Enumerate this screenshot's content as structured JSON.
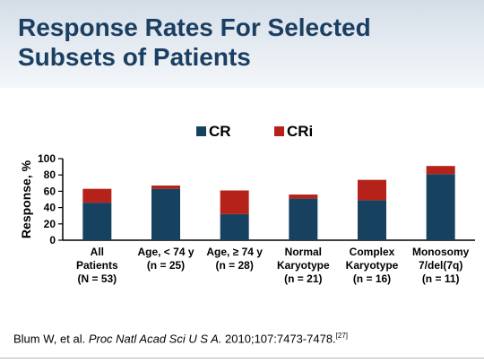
{
  "slide": {
    "title": "Response Rates For Selected Subsets of Patients"
  },
  "citation": {
    "authors": "Blum W, et al.",
    "journal": "Proc Natl Acad Sci U S A.",
    "details": "2010;107:7473-7478.",
    "ref": "[27]"
  },
  "chart_data": {
    "type": "bar",
    "stacked": true,
    "categories": [
      [
        "All",
        "Patients",
        "(N = 53)"
      ],
      [
        "Age, < 74 y",
        "(n = 25)"
      ],
      [
        "Age, ≥ 74 y",
        "(n = 28)"
      ],
      [
        "Normal",
        "Karyotype",
        "(n = 21)"
      ],
      [
        "Complex",
        "Karyotype",
        "(n = 16)"
      ],
      [
        "Monosomy",
        "7/del(7q)",
        "(n = 11)"
      ]
    ],
    "series": [
      {
        "name": "CR",
        "color": "#17425f",
        "values": [
          46,
          63,
          32,
          51,
          49,
          81
        ]
      },
      {
        "name": "CRi",
        "color": "#b5221a",
        "values": [
          17,
          4,
          29,
          5,
          25,
          10
        ]
      }
    ],
    "ylabel": "Response, %",
    "ylim": [
      0,
      100
    ],
    "yticks": [
      0,
      20,
      40,
      60,
      80,
      100
    ],
    "legend_position": "top-center",
    "grid": false
  }
}
